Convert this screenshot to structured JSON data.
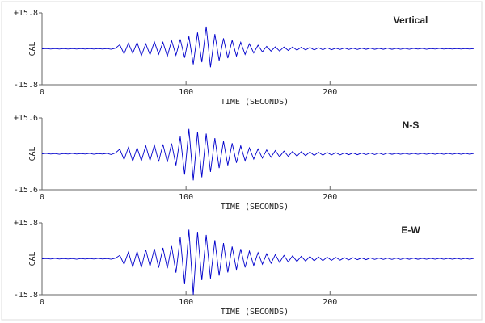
{
  "chart_data": [
    {
      "type": "line",
      "title": "Vertical",
      "xlabel": "TIME (SECONDS)",
      "ylabel": "CAL",
      "xlim": [
        0,
        302
      ],
      "xticks": [
        0,
        100,
        200
      ],
      "ylim": [
        -15.8,
        15.8
      ],
      "yticks": [
        {
          "value": 15.8,
          "label": "+15.8"
        },
        -15.8
      ],
      "color": "#0000cc",
      "x": [
        0,
        3,
        6,
        9,
        12,
        15,
        18,
        21,
        24,
        27,
        30,
        33,
        36,
        39,
        42,
        45,
        48,
        51,
        54,
        57,
        60,
        63,
        66,
        69,
        72,
        75,
        78,
        81,
        84,
        87,
        90,
        93,
        96,
        99,
        102,
        105,
        108,
        111,
        114,
        117,
        120,
        123,
        126,
        129,
        132,
        135,
        138,
        141,
        144,
        147,
        150,
        153,
        156,
        159,
        162,
        165,
        168,
        171,
        174,
        177,
        180,
        183,
        186,
        189,
        192,
        195,
        198,
        201,
        204,
        207,
        210,
        213,
        216,
        219,
        222,
        225,
        228,
        231,
        234,
        237,
        240,
        243,
        246,
        249,
        252,
        255,
        258,
        261,
        264,
        267,
        270,
        273,
        276,
        279,
        282,
        285,
        288,
        291,
        294,
        297,
        300
      ],
      "values": [
        0,
        0.1,
        -0.1,
        0.1,
        -0.1,
        0.1,
        -0.1,
        0.1,
        -0.1,
        0.1,
        -0.1,
        0.1,
        -0.1,
        0.1,
        -0.1,
        0.1,
        -0.2,
        0.3,
        1.8,
        -2.2,
        2.5,
        -2.0,
        2.8,
        -3.0,
        2.2,
        -2.6,
        3.1,
        -2.4,
        2.9,
        -3.3,
        3.6,
        -2.8,
        4.2,
        -3.9,
        5.5,
        -6.8,
        7.2,
        -5.9,
        9.8,
        -8.1,
        6.5,
        -5.2,
        4.6,
        -4.1,
        3.8,
        -3.2,
        2.9,
        -2.5,
        2.2,
        -1.8,
        1.6,
        -1.3,
        1.1,
        -1.0,
        0.9,
        -1.0,
        0.8,
        -0.7,
        0.8,
        -0.6,
        0.7,
        -0.5,
        0.6,
        -0.5,
        0.5,
        -0.4,
        0.5,
        -0.4,
        0.3,
        -0.3,
        0.4,
        -0.3,
        0.3,
        -0.3,
        0.3,
        -0.2,
        0.3,
        -0.2,
        0.2,
        -0.2,
        0.3,
        -0.2,
        0.2,
        -0.2,
        0.2,
        -0.2,
        0.2,
        -0.1,
        0.2,
        -0.2,
        0.1,
        -0.1,
        0.2,
        -0.1,
        0.1,
        -0.1,
        0.1,
        -0.1,
        0.1,
        -0.1,
        0.1
      ]
    },
    {
      "type": "line",
      "title": "N-S",
      "xlabel": "TIME (SECONDS)",
      "ylabel": "CAL",
      "xlim": [
        0,
        302
      ],
      "xticks": [
        0,
        100,
        200
      ],
      "ylim": [
        -15.6,
        15.6
      ],
      "yticks": [
        {
          "value": 15.6,
          "label": "+15.6"
        },
        -15.6
      ],
      "color": "#0000cc",
      "x": [
        0,
        3,
        6,
        9,
        12,
        15,
        18,
        21,
        24,
        27,
        30,
        33,
        36,
        39,
        42,
        45,
        48,
        51,
        54,
        57,
        60,
        63,
        66,
        69,
        72,
        75,
        78,
        81,
        84,
        87,
        90,
        93,
        96,
        99,
        102,
        105,
        108,
        111,
        114,
        117,
        120,
        123,
        126,
        129,
        132,
        135,
        138,
        141,
        144,
        147,
        150,
        153,
        156,
        159,
        162,
        165,
        168,
        171,
        174,
        177,
        180,
        183,
        186,
        189,
        192,
        195,
        198,
        201,
        204,
        207,
        210,
        213,
        216,
        219,
        222,
        225,
        228,
        231,
        234,
        237,
        240,
        243,
        246,
        249,
        252,
        255,
        258,
        261,
        264,
        267,
        270,
        273,
        276,
        279,
        282,
        285,
        288,
        291,
        294,
        297,
        300
      ],
      "values": [
        0,
        0.2,
        -0.1,
        0.1,
        -0.2,
        0.1,
        -0.1,
        0.2,
        -0.1,
        0.1,
        -0.1,
        0.2,
        -0.2,
        0.1,
        -0.1,
        0.2,
        -0.3,
        0.4,
        2.0,
        -2.5,
        2.8,
        -3.2,
        2.6,
        -3.0,
        3.5,
        -2.9,
        3.8,
        -3.4,
        4.1,
        -3.6,
        4.5,
        -5.0,
        7.5,
        -9.0,
        10.8,
        -11.5,
        9.6,
        -10.2,
        8.8,
        -7.9,
        6.8,
        -6.2,
        5.5,
        -5.0,
        4.6,
        -3.9,
        3.5,
        -3.0,
        2.6,
        -2.3,
        2.1,
        -1.9,
        1.7,
        -1.5,
        1.4,
        -1.3,
        1.2,
        -1.1,
        1.0,
        -1.0,
        0.9,
        -0.8,
        0.8,
        -0.7,
        0.7,
        -0.6,
        0.6,
        -0.5,
        0.5,
        -0.5,
        0.4,
        -0.4,
        0.4,
        -0.4,
        0.3,
        -0.3,
        0.3,
        -0.3,
        0.3,
        -0.3,
        0.3,
        -0.2,
        0.2,
        -0.2,
        0.2,
        -0.2,
        0.2,
        -0.2,
        0.2,
        -0.2,
        0.2,
        -0.2,
        0.2,
        -0.2,
        0.2,
        -0.2,
        0.2,
        -0.2,
        0.2,
        -0.2,
        0.2
      ]
    },
    {
      "type": "line",
      "title": "E-W",
      "xlabel": "TIME (SECONDS)",
      "ylabel": "CAL",
      "xlim": [
        0,
        302
      ],
      "xticks": [
        0,
        100,
        200
      ],
      "ylim": [
        -15.8,
        15.8
      ],
      "yticks": [
        {
          "value": 15.8,
          "label": "+15.8"
        },
        -15.8
      ],
      "color": "#0000cc",
      "x": [
        0,
        3,
        6,
        9,
        12,
        15,
        18,
        21,
        24,
        27,
        30,
        33,
        36,
        39,
        42,
        45,
        48,
        51,
        54,
        57,
        60,
        63,
        66,
        69,
        72,
        75,
        78,
        81,
        84,
        87,
        90,
        93,
        96,
        99,
        102,
        105,
        108,
        111,
        114,
        117,
        120,
        123,
        126,
        129,
        132,
        135,
        138,
        141,
        144,
        147,
        150,
        153,
        156,
        159,
        162,
        165,
        168,
        171,
        174,
        177,
        180,
        183,
        186,
        189,
        192,
        195,
        198,
        201,
        204,
        207,
        210,
        213,
        216,
        219,
        222,
        225,
        228,
        231,
        234,
        237,
        240,
        243,
        246,
        249,
        252,
        255,
        258,
        261,
        264,
        267,
        270,
        273,
        276,
        279,
        282,
        285,
        288,
        291,
        294,
        297,
        300
      ],
      "values": [
        0,
        0.1,
        -0.1,
        0.2,
        -0.1,
        0.1,
        -0.1,
        0.1,
        -0.2,
        0.1,
        -0.1,
        0.1,
        -0.1,
        0.2,
        -0.1,
        0.1,
        -0.2,
        0.3,
        1.5,
        -2.4,
        3.0,
        -3.6,
        3.2,
        -3.8,
        4.0,
        -3.3,
        4.4,
        -3.9,
        4.8,
        -4.2,
        5.6,
        -6.1,
        9.5,
        -11.2,
        12.8,
        -15.8,
        11.9,
        -9.4,
        10.5,
        -8.7,
        8.2,
        -7.4,
        6.9,
        -6.0,
        5.4,
        -4.8,
        4.3,
        -3.8,
        3.4,
        -3.0,
        2.7,
        -2.4,
        2.2,
        -2.0,
        1.8,
        -1.6,
        1.5,
        -1.4,
        1.3,
        -1.2,
        1.1,
        -1.0,
        1.0,
        -0.9,
        0.8,
        -0.8,
        0.7,
        -0.7,
        0.6,
        -0.6,
        0.5,
        -0.5,
        0.5,
        -0.4,
        0.4,
        -0.4,
        0.4,
        -0.3,
        0.3,
        -0.3,
        0.3,
        -0.3,
        0.3,
        -0.3,
        0.3,
        -0.2,
        0.3,
        -0.2,
        0.2,
        -0.2,
        0.2,
        -0.2,
        0.2,
        -0.2,
        0.2,
        -0.2,
        0.2,
        -0.2,
        0.2,
        -0.2,
        0.2
      ]
    }
  ]
}
